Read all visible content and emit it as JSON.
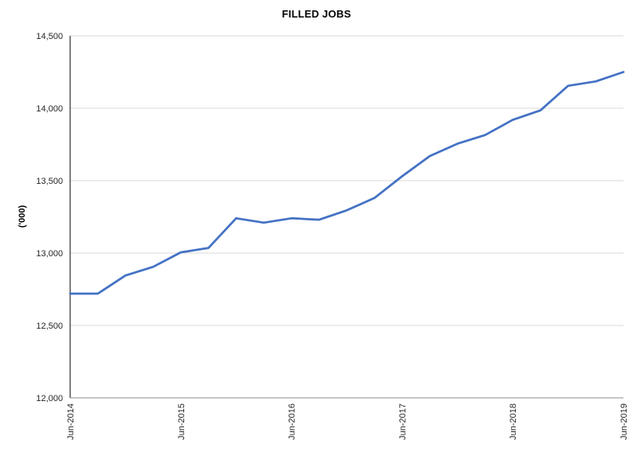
{
  "chart_data": {
    "type": "line",
    "title": "FILLED JOBS",
    "ylabel": "('000)",
    "xlabel": "",
    "legend_position": "none",
    "grid": true,
    "x": [
      "Jun-2014",
      "Sep-2014",
      "Dec-2014",
      "Mar-2015",
      "Jun-2015",
      "Sep-2015",
      "Dec-2015",
      "Mar-2016",
      "Jun-2016",
      "Sep-2016",
      "Dec-2016",
      "Mar-2017",
      "Jun-2017",
      "Sep-2017",
      "Dec-2017",
      "Mar-2018",
      "Jun-2018",
      "Sep-2018",
      "Dec-2018",
      "Mar-2019",
      "Jun-2019"
    ],
    "values": [
      12720,
      12720,
      12845,
      12905,
      13005,
      13035,
      13240,
      13210,
      13240,
      13230,
      13295,
      13380,
      13530,
      13670,
      13755,
      13815,
      13920,
      13985,
      14155,
      14185,
      14250
    ],
    "x_tick_labels": [
      "Jun-2014",
      "Jun-2015",
      "Jun-2016",
      "Jun-2017",
      "Jun-2018",
      "Jun-2019"
    ],
    "x_tick_indices": [
      0,
      4,
      8,
      12,
      16,
      20
    ],
    "y_ticks": [
      12000,
      12500,
      13000,
      13500,
      14000,
      14500
    ],
    "y_tick_labels": [
      "12,000",
      "12,500",
      "13,000",
      "13,500",
      "14,000",
      "14,500"
    ],
    "ylim": [
      12000,
      14500
    ],
    "colors": {
      "line": "#4472C4",
      "gridline": "#D9D9D9",
      "left_axis": "#000000",
      "bottom_axis": "#8C8C8C",
      "tick_text": "#262626"
    }
  }
}
